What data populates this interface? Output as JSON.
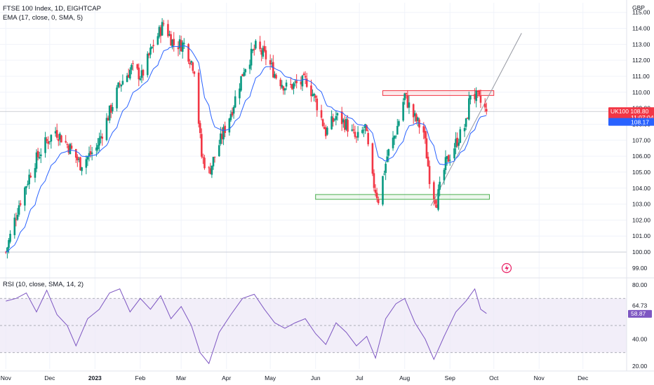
{
  "header": {
    "title": "FTSE 100 Index, 1D, EIGHTCAP",
    "ema_label": "EMA (17, close, 0, SMA, 5)",
    "rsi_label": "RSI (10, close, SMA, 14, 2)",
    "currency": "GBP"
  },
  "colors": {
    "up": "#089981",
    "down": "#f23645",
    "ema": "#2962ff",
    "rsi_line": "#7e57c2",
    "rsi_band": "#ede7f6",
    "price_badge": "#f23645",
    "ema_badge": "#2962ff",
    "support_zone": "#4caf50",
    "resistance_zone": "#f23645",
    "trendline": "#9598a1"
  },
  "price_badge": {
    "symbol": "UK100",
    "price": "108.80",
    "countdown": "11:07:04"
  },
  "ema_badge": {
    "value": "108.17"
  },
  "rsi_badge": {
    "value": "58.87",
    "max_label": "64.73"
  },
  "chart_data": [
    {
      "type": "candlestick",
      "title": "FTSE 100 Index, 1D, EIGHTCAP",
      "currency": "GBP",
      "x_ticks": [
        "Nov",
        "Dec",
        "2023",
        "Feb",
        "Mar",
        "Apr",
        "May",
        "Jun",
        "Jul",
        "Aug",
        "Sep",
        "Oct",
        "Nov",
        "Dec"
      ],
      "y_ticks": [
        99.0,
        100.0,
        101.0,
        102.0,
        103.0,
        104.0,
        105.0,
        106.0,
        107.0,
        108.0,
        109.0,
        110.0,
        111.0,
        112.0,
        113.0,
        114.0,
        115.0
      ],
      "ylim": [
        98.6,
        115.6
      ],
      "close_path": [
        {
          "date": "2022-11-01",
          "close": 100.0
        },
        {
          "date": "2022-11-10",
          "close": 103.0
        },
        {
          "date": "2022-11-20",
          "close": 105.5
        },
        {
          "date": "2022-11-28",
          "close": 106.8
        },
        {
          "date": "2022-12-05",
          "close": 107.6
        },
        {
          "date": "2022-12-15",
          "close": 106.5
        },
        {
          "date": "2022-12-22",
          "close": 105.5
        },
        {
          "date": "2023-01-02",
          "close": 106.5
        },
        {
          "date": "2023-01-10",
          "close": 108.5
        },
        {
          "date": "2023-01-18",
          "close": 110.5
        },
        {
          "date": "2023-01-26",
          "close": 111.5
        },
        {
          "date": "2023-02-02",
          "close": 111.0
        },
        {
          "date": "2023-02-10",
          "close": 113.0
        },
        {
          "date": "2023-02-17",
          "close": 114.3
        },
        {
          "date": "2023-02-24",
          "close": 113.0
        },
        {
          "date": "2023-03-03",
          "close": 113.0
        },
        {
          "date": "2023-03-10",
          "close": 111.5
        },
        {
          "date": "2023-03-15",
          "close": 106.0
        },
        {
          "date": "2023-03-20",
          "close": 105.0
        },
        {
          "date": "2023-03-28",
          "close": 107.0
        },
        {
          "date": "2023-04-05",
          "close": 109.0
        },
        {
          "date": "2023-04-13",
          "close": 111.5
        },
        {
          "date": "2023-04-21",
          "close": 112.8
        },
        {
          "date": "2023-04-28",
          "close": 112.2
        },
        {
          "date": "2023-05-05",
          "close": 111.0
        },
        {
          "date": "2023-05-12",
          "close": 110.3
        },
        {
          "date": "2023-05-19",
          "close": 110.5
        },
        {
          "date": "2023-05-26",
          "close": 110.7
        },
        {
          "date": "2023-06-01",
          "close": 109.5
        },
        {
          "date": "2023-06-08",
          "close": 107.5
        },
        {
          "date": "2023-06-15",
          "close": 108.5
        },
        {
          "date": "2023-06-22",
          "close": 108.0
        },
        {
          "date": "2023-06-29",
          "close": 107.0
        },
        {
          "date": "2023-07-05",
          "close": 107.8
        },
        {
          "date": "2023-07-10",
          "close": 104.5
        },
        {
          "date": "2023-07-14",
          "close": 103.3
        },
        {
          "date": "2023-07-20",
          "close": 106.0
        },
        {
          "date": "2023-07-26",
          "close": 107.5
        },
        {
          "date": "2023-08-01",
          "close": 109.8
        },
        {
          "date": "2023-08-07",
          "close": 108.5
        },
        {
          "date": "2023-08-14",
          "close": 107.5
        },
        {
          "date": "2023-08-19",
          "close": 104.0
        },
        {
          "date": "2023-08-23",
          "close": 103.2
        },
        {
          "date": "2023-08-29",
          "close": 105.5
        },
        {
          "date": "2023-09-06",
          "close": 107.0
        },
        {
          "date": "2023-09-12",
          "close": 108.0
        },
        {
          "date": "2023-09-15",
          "close": 110.0
        },
        {
          "date": "2023-09-20",
          "close": 109.6
        },
        {
          "date": "2023-09-26",
          "close": 108.8
        }
      ],
      "annotations": [
        {
          "kind": "zone",
          "label": "resistance",
          "y_range": [
            109.8,
            110.1
          ],
          "x_range": [
            "2023-07-17",
            "2023-10-01"
          ]
        },
        {
          "kind": "zone",
          "label": "support",
          "y_range": [
            103.3,
            103.6
          ],
          "x_range": [
            "2023-06-01",
            "2023-09-28"
          ]
        },
        {
          "kind": "trendline",
          "points": [
            {
              "date": "2023-08-19",
              "close": 102.9
            },
            {
              "date": "2023-10-20",
              "close": 113.7
            }
          ]
        },
        {
          "kind": "horizontal_line",
          "value": 100.0
        },
        {
          "kind": "horizontal_line",
          "value": 108.8
        }
      ]
    },
    {
      "type": "line",
      "title": "RSI (10, close, SMA, 14, 2)",
      "y_ticks": [
        20.0,
        40.0,
        64.73,
        80.0
      ],
      "ylim": [
        18,
        82
      ],
      "bands": [
        30,
        50,
        70
      ],
      "series": [
        {
          "name": "RSI",
          "points": [
            {
              "date": "2022-11-01",
              "value": 68
            },
            {
              "date": "2022-11-08",
              "value": 70
            },
            {
              "date": "2022-11-15",
              "value": 74
            },
            {
              "date": "2022-11-22",
              "value": 60
            },
            {
              "date": "2022-11-29",
              "value": 76
            },
            {
              "date": "2022-12-06",
              "value": 58
            },
            {
              "date": "2022-12-13",
              "value": 50
            },
            {
              "date": "2022-12-19",
              "value": 35
            },
            {
              "date": "2022-12-27",
              "value": 55
            },
            {
              "date": "2023-01-04",
              "value": 62
            },
            {
              "date": "2023-01-11",
              "value": 74
            },
            {
              "date": "2023-01-18",
              "value": 77
            },
            {
              "date": "2023-01-25",
              "value": 60
            },
            {
              "date": "2023-02-01",
              "value": 70
            },
            {
              "date": "2023-02-08",
              "value": 62
            },
            {
              "date": "2023-02-15",
              "value": 72
            },
            {
              "date": "2023-02-22",
              "value": 55
            },
            {
              "date": "2023-03-01",
              "value": 64
            },
            {
              "date": "2023-03-08",
              "value": 50
            },
            {
              "date": "2023-03-14",
              "value": 30
            },
            {
              "date": "2023-03-20",
              "value": 22
            },
            {
              "date": "2023-03-27",
              "value": 45
            },
            {
              "date": "2023-04-04",
              "value": 58
            },
            {
              "date": "2023-04-12",
              "value": 70
            },
            {
              "date": "2023-04-20",
              "value": 73
            },
            {
              "date": "2023-04-27",
              "value": 62
            },
            {
              "date": "2023-05-04",
              "value": 52
            },
            {
              "date": "2023-05-11",
              "value": 48
            },
            {
              "date": "2023-05-18",
              "value": 52
            },
            {
              "date": "2023-05-25",
              "value": 55
            },
            {
              "date": "2023-06-01",
              "value": 44
            },
            {
              "date": "2023-06-08",
              "value": 36
            },
            {
              "date": "2023-06-15",
              "value": 52
            },
            {
              "date": "2023-06-22",
              "value": 45
            },
            {
              "date": "2023-06-29",
              "value": 35
            },
            {
              "date": "2023-07-06",
              "value": 42
            },
            {
              "date": "2023-07-12",
              "value": 26
            },
            {
              "date": "2023-07-19",
              "value": 55
            },
            {
              "date": "2023-07-26",
              "value": 66
            },
            {
              "date": "2023-08-01",
              "value": 70
            },
            {
              "date": "2023-08-08",
              "value": 52
            },
            {
              "date": "2023-08-15",
              "value": 40
            },
            {
              "date": "2023-08-21",
              "value": 25
            },
            {
              "date": "2023-08-28",
              "value": 42
            },
            {
              "date": "2023-09-05",
              "value": 60
            },
            {
              "date": "2023-09-12",
              "value": 68
            },
            {
              "date": "2023-09-18",
              "value": 77
            },
            {
              "date": "2023-09-22",
              "value": 62
            },
            {
              "date": "2023-09-26",
              "value": 58.87
            }
          ]
        }
      ]
    }
  ]
}
